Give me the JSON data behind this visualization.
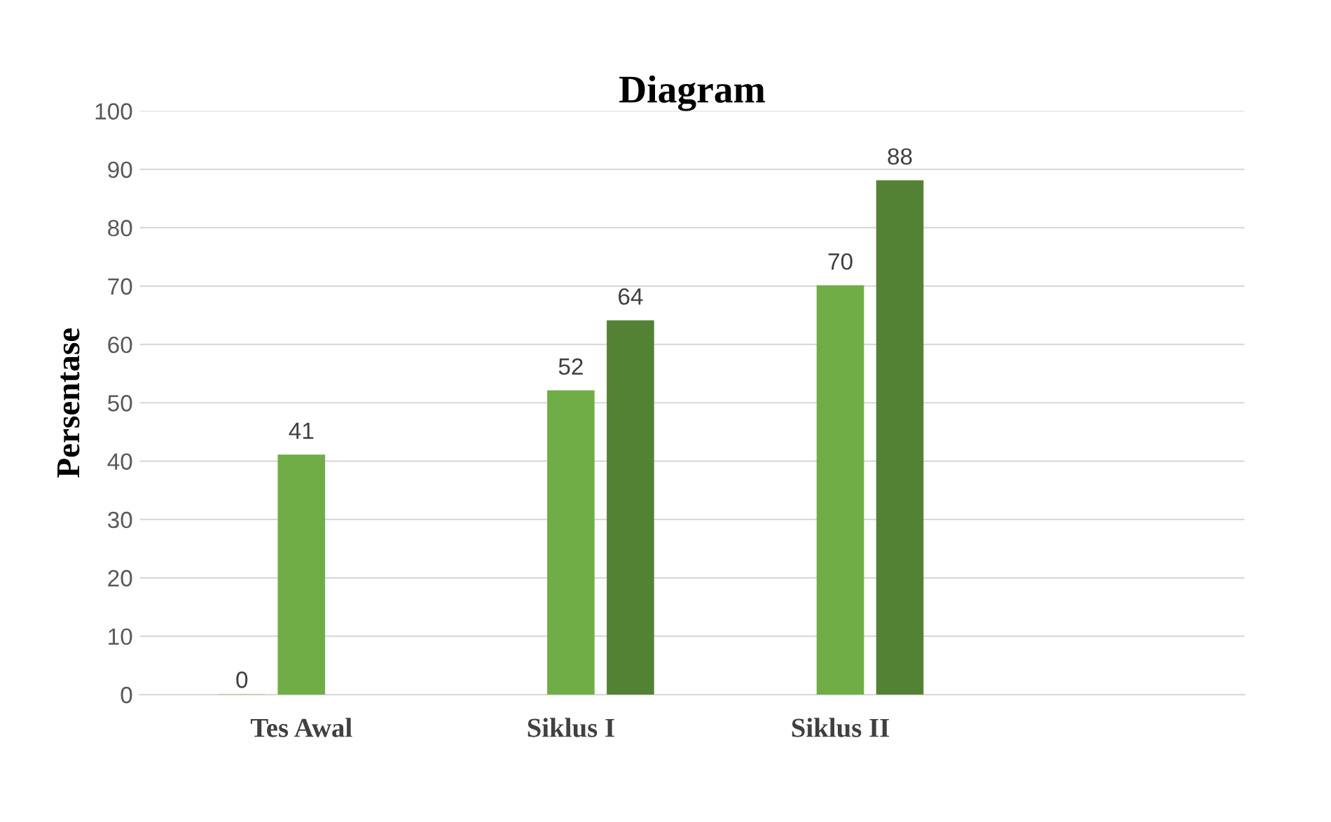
{
  "chart_data": {
    "type": "bar",
    "title": "Diagram",
    "ylabel": "Persentase",
    "categories": [
      "Tes Awal",
      "Siklus I",
      "Siklus II",
      null
    ],
    "series": [
      {
        "color": "#a9d18e",
        "values": [
          0,
          null,
          null,
          null
        ]
      },
      {
        "color": "#70ad47",
        "values": [
          41,
          52,
          70,
          null
        ]
      },
      {
        "color": "#548235",
        "values": [
          null,
          64,
          88,
          null
        ]
      }
    ],
    "ylim": [
      0,
      100
    ],
    "yticks": [
      0,
      10,
      20,
      30,
      40,
      50,
      60,
      70,
      80,
      90,
      100
    ],
    "grid": "y",
    "data_labels": true,
    "legend": false
  }
}
